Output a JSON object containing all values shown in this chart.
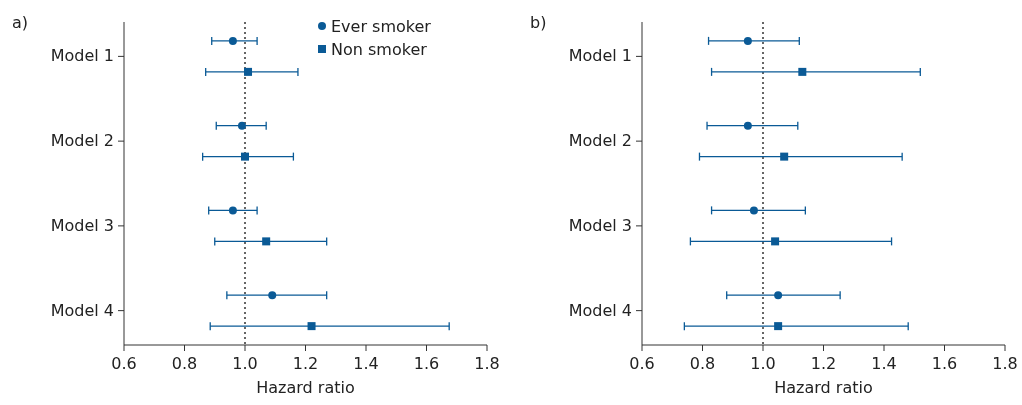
{
  "chart_data": [
    {
      "type": "scatter",
      "title": "a)",
      "orientation": "horizontal",
      "categories": [
        "Model 1",
        "Model 2",
        "Model 3",
        "Model 4"
      ],
      "xlabel": "Hazard ratio",
      "xlim": [
        0.6,
        1.8
      ],
      "xticks": [
        0.6,
        0.8,
        {
          "value": 1.0,
          "label": "1.0"
        },
        1.2,
        1.4,
        1.6,
        1.8
      ],
      "legend": "top right",
      "ref_lines": [
        {
          "axis": "x",
          "value": 1.0,
          "line_style": "dotted",
          "color": "#333333"
        }
      ],
      "series": [
        {
          "name": "Ever smoker",
          "color": "#0a5a96",
          "marker": "circle",
          "values": [
            0.96,
            0.99,
            0.96,
            1.09
          ],
          "errors": [
            [
              0.89,
              1.04
            ],
            [
              0.905,
              1.07
            ],
            [
              0.88,
              1.04
            ],
            [
              0.94,
              1.27
            ]
          ]
        },
        {
          "name": "Non smoker",
          "color": "#0a5a96",
          "marker": "square",
          "values": [
            1.01,
            1.0,
            1.07,
            1.22
          ],
          "errors": [
            [
              0.87,
              1.175
            ],
            [
              0.86,
              1.16
            ],
            [
              0.9,
              1.27
            ],
            [
              0.885,
              1.675
            ]
          ]
        }
      ]
    },
    {
      "type": "scatter",
      "title": "b)",
      "orientation": "horizontal",
      "categories": [
        "Model 1",
        "Model 2",
        "Model 3",
        "Model 4"
      ],
      "xlabel": "Hazard ratio",
      "xlim": [
        0.6,
        1.8
      ],
      "xticks": [
        0.6,
        0.8,
        {
          "value": 1.0,
          "label": "1.0"
        },
        1.2,
        1.4,
        1.6,
        1.8
      ],
      "ref_lines": [
        {
          "axis": "x",
          "value": 1.0,
          "line_style": "dotted",
          "color": "#333333"
        }
      ],
      "series": [
        {
          "color": "#0a5a96",
          "marker": "circle",
          "values": [
            0.95,
            0.95,
            0.97,
            1.05
          ],
          "errors": [
            [
              0.82,
              1.12
            ],
            [
              0.815,
              1.115
            ],
            [
              0.83,
              1.14
            ],
            [
              0.88,
              1.255
            ]
          ]
        },
        {
          "color": "#0a5a96",
          "marker": "square",
          "values": [
            1.13,
            1.07,
            1.04,
            1.05
          ],
          "errors": [
            [
              0.83,
              1.52
            ],
            [
              0.79,
              1.46
            ],
            [
              0.76,
              1.425
            ],
            [
              0.74,
              1.48
            ]
          ]
        }
      ]
    }
  ]
}
